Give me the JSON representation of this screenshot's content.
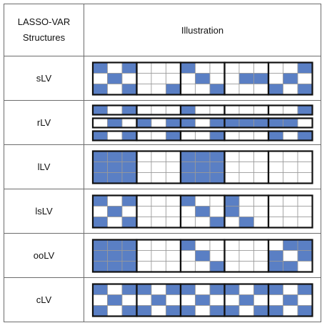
{
  "header": {
    "structures_line1": "LASSO-VAR",
    "structures_line2": "Structures",
    "illustration": "Illustration"
  },
  "colors": {
    "filled": "#5a7fc4",
    "empty": "#ffffff",
    "border": "#111111"
  },
  "rows": [
    {
      "label": "sLV",
      "matrices": [
        {
          "rows": 3,
          "cells": [
            [
              1,
              0,
              1,
              0,
              0,
              0,
              1,
              0,
              0,
              0,
              0,
              0,
              0,
              0,
              1
            ],
            [
              0,
              1,
              0,
              0,
              0,
              0,
              0,
              1,
              0,
              0,
              1,
              1,
              0,
              1,
              0
            ],
            [
              1,
              0,
              1,
              0,
              0,
              1,
              0,
              0,
              1,
              0,
              0,
              0,
              1,
              0,
              1
            ]
          ]
        }
      ]
    },
    {
      "label": "rLV",
      "matrices": [
        {
          "rows": 1,
          "cells": [
            [
              1,
              0,
              1,
              0,
              0,
              0,
              1,
              0,
              0,
              0,
              0,
              0,
              0,
              0,
              1
            ]
          ]
        },
        {
          "rows": 1,
          "cells": [
            [
              0,
              1,
              0,
              1,
              0,
              1,
              1,
              0,
              1,
              1,
              1,
              1,
              1,
              1,
              0
            ]
          ]
        },
        {
          "rows": 1,
          "cells": [
            [
              1,
              0,
              1,
              0,
              0,
              1,
              0,
              0,
              1,
              0,
              0,
              0,
              1,
              0,
              1
            ]
          ]
        }
      ]
    },
    {
      "label": "lLV",
      "matrices": [
        {
          "rows": 3,
          "cells": [
            [
              1,
              1,
              1,
              0,
              0,
              0,
              1,
              1,
              1,
              0,
              0,
              0,
              0,
              0,
              0
            ],
            [
              1,
              1,
              1,
              0,
              0,
              0,
              1,
              1,
              1,
              0,
              0,
              0,
              0,
              0,
              0
            ],
            [
              1,
              1,
              1,
              0,
              0,
              0,
              1,
              1,
              1,
              0,
              0,
              0,
              0,
              0,
              0
            ]
          ]
        }
      ]
    },
    {
      "label": "lsLV",
      "matrices": [
        {
          "rows": 3,
          "cells": [
            [
              1,
              0,
              1,
              0,
              0,
              0,
              1,
              0,
              0,
              1,
              0,
              0,
              0,
              0,
              0
            ],
            [
              0,
              1,
              0,
              0,
              0,
              0,
              0,
              1,
              0,
              1,
              0,
              0,
              0,
              0,
              0
            ],
            [
              1,
              0,
              1,
              0,
              0,
              0,
              0,
              0,
              1,
              0,
              1,
              0,
              0,
              0,
              0
            ]
          ]
        }
      ]
    },
    {
      "label": "ooLV",
      "matrices": [
        {
          "rows": 3,
          "cells": [
            [
              1,
              1,
              1,
              0,
              0,
              0,
              1,
              0,
              0,
              0,
              0,
              0,
              0,
              1,
              1
            ],
            [
              1,
              1,
              1,
              0,
              0,
              0,
              0,
              1,
              0,
              0,
              0,
              0,
              1,
              0,
              1
            ],
            [
              1,
              1,
              1,
              0,
              0,
              0,
              0,
              0,
              1,
              0,
              0,
              0,
              1,
              1,
              0
            ]
          ]
        }
      ]
    },
    {
      "label": "cLV",
      "matrices": [
        {
          "rows": 3,
          "cells": [
            [
              1,
              0,
              1,
              1,
              0,
              1,
              1,
              0,
              1,
              1,
              0,
              1,
              1,
              0,
              1
            ],
            [
              0,
              1,
              0,
              0,
              1,
              0,
              0,
              1,
              0,
              0,
              1,
              0,
              0,
              1,
              0
            ],
            [
              1,
              0,
              1,
              1,
              0,
              1,
              1,
              0,
              1,
              1,
              0,
              1,
              1,
              0,
              1
            ]
          ]
        }
      ]
    }
  ]
}
